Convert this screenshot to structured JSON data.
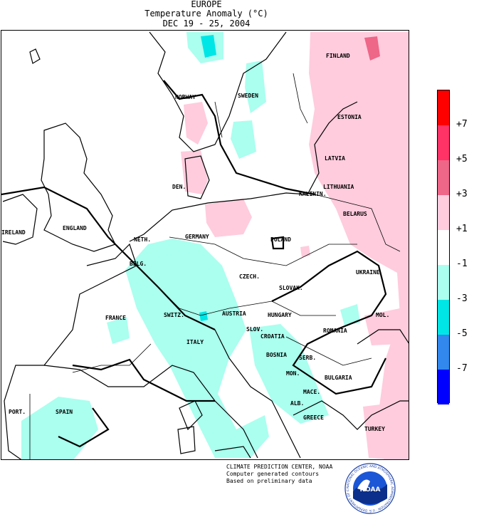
{
  "title": {
    "line1": "EUROPE",
    "line2": "Temperature Anomaly (°C)",
    "line3": "DEC 19 - 25, 2004"
  },
  "countries": [
    {
      "label": "FINLAND"
    },
    {
      "label": "NORWAY"
    },
    {
      "label": "SWEDEN"
    },
    {
      "label": "ESTONIA"
    },
    {
      "label": "LATVIA"
    },
    {
      "label": "LITHUANIA"
    },
    {
      "label": "KALININ."
    },
    {
      "label": "BELARUS"
    },
    {
      "label": "DEN."
    },
    {
      "label": "IRELAND"
    },
    {
      "label": "ENGLAND"
    },
    {
      "label": "NETH."
    },
    {
      "label": "BELG."
    },
    {
      "label": "GERMANY"
    },
    {
      "label": "POLAND"
    },
    {
      "label": "UKRAINE"
    },
    {
      "label": "CZECH."
    },
    {
      "label": "SLOVAK."
    },
    {
      "label": "FRANCE"
    },
    {
      "label": "SWITZ."
    },
    {
      "label": "AUSTRIA"
    },
    {
      "label": "HUNGARY"
    },
    {
      "label": "MOL."
    },
    {
      "label": "ROMANIA"
    },
    {
      "label": "SLOV."
    },
    {
      "label": "CROATIA"
    },
    {
      "label": "ITALY"
    },
    {
      "label": "BOSNIA"
    },
    {
      "label": "SERB."
    },
    {
      "label": "MON."
    },
    {
      "label": "BULGARIA"
    },
    {
      "label": "MACE."
    },
    {
      "label": "ALB."
    },
    {
      "label": "PORT."
    },
    {
      "label": "SPAIN"
    },
    {
      "label": "GREECE"
    },
    {
      "label": "TURKEY"
    }
  ],
  "legend": {
    "colors": [
      "#ff0000",
      "#ff3366",
      "#ee6688",
      "#ffccdd",
      "#ffffff",
      "#aaffee",
      "#00e6e6",
      "#3388ee",
      "#0000ff"
    ],
    "labels": [
      "+7",
      "+5",
      "+3",
      "+1",
      "-1",
      "-3",
      "-5",
      "-7"
    ]
  },
  "footer": {
    "line1": "CLIMATE PREDICTION CENTER, NOAA",
    "line2": "Computer generated contours",
    "line3": "Based on preliminary data"
  },
  "logo": {
    "text": "NOAA",
    "ring": "NATIONAL OCEANIC AND ATMOSPHERIC ADMINISTRATION · U.S. DEPARTMENT OF COMMERCE ·"
  }
}
